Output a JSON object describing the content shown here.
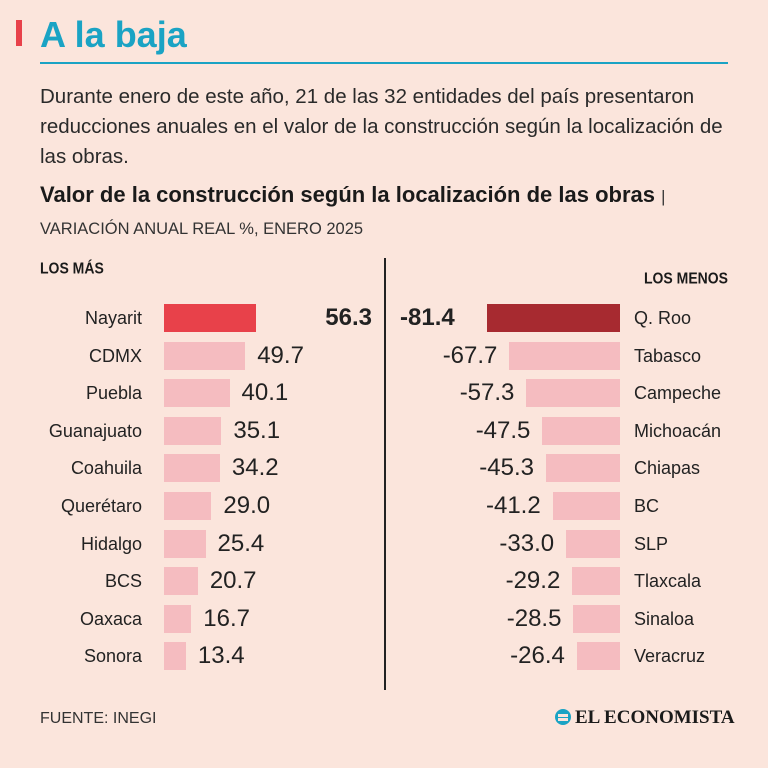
{
  "header": {
    "title": "A la baja",
    "intro": "Durante enero de este año, 21 de las 32 entidades del país presentaron reducciones anuales en el valor de la construcción según la localización de las obras."
  },
  "chart_heading": {
    "title": "Valor de la construcción según la localización de las obras",
    "separator": "|",
    "subtitle": "VARIACIÓN ANUAL REAL %, ENERO 2025"
  },
  "colors": {
    "background": "#fbe5dc",
    "accent_title": "#1aa3c4",
    "accent_bar_marker": "#e8414a",
    "bar_top_positive": "#e8414a",
    "bar_top_negative": "#a72a30",
    "bar_default": "#f5bcc0"
  },
  "chart_data": [
    {
      "type": "bar",
      "orientation": "horizontal",
      "label": "LOS MÁS",
      "categories": [
        "Nayarit",
        "CDMX",
        "Puebla",
        "Guanajuato",
        "Coahuila",
        "Querétaro",
        "Hidalgo",
        "BCS",
        "Oaxaca",
        "Sonora"
      ],
      "values": [
        56.3,
        49.7,
        40.1,
        35.1,
        34.2,
        29.0,
        25.4,
        20.7,
        16.7,
        13.4
      ],
      "value_labels": [
        "56.3",
        "49.7",
        "40.1",
        "35.1",
        "34.2",
        "29.0",
        "25.4",
        "20.7",
        "16.7",
        "13.4"
      ],
      "xlim": [
        0,
        81.4
      ],
      "grid": false,
      "legend": "none"
    },
    {
      "type": "bar",
      "orientation": "horizontal",
      "label": "LOS MENOS",
      "categories": [
        "Q. Roo",
        "Tabasco",
        "Campeche",
        "Michoacán",
        "Chiapas",
        "BC",
        "SLP",
        "Tlaxcala",
        "Sinaloa",
        "Veracruz"
      ],
      "values": [
        -81.4,
        -67.7,
        -57.3,
        -47.5,
        -45.3,
        -41.2,
        -33.0,
        -29.2,
        -28.5,
        -26.4
      ],
      "value_labels": [
        "-81.4",
        "-67.7",
        "-57.3",
        "-47.5",
        "-45.3",
        "-41.2",
        "-33.0",
        "-29.2",
        "-28.5",
        "-26.4"
      ],
      "xlim": [
        -81.4,
        0
      ],
      "grid": false,
      "legend": "none"
    }
  ],
  "footer": {
    "source": "FUENTE: INEGI",
    "brand": "EL ECONOMISTA",
    "brand_icon": "el-economista-logo-icon"
  }
}
